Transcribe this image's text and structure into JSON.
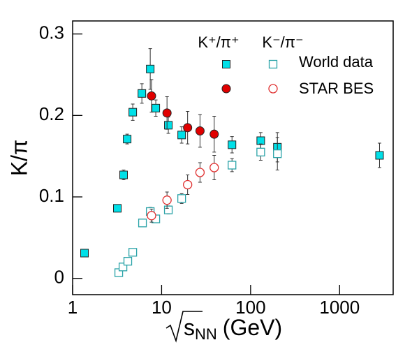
{
  "chart_data": {
    "type": "scatter",
    "ylabel": "K/π",
    "xlabel": {
      "base": "s",
      "sub": "NN",
      "unit": "(GeV)"
    },
    "log_x": true,
    "xlim": [
      1,
      4000
    ],
    "xticks": [
      1,
      10,
      100,
      1000
    ],
    "ylim": [
      -0.02,
      0.316
    ],
    "yticks": [
      0,
      0.1,
      0.2,
      0.3
    ],
    "ratios": [
      "K⁺/π⁺",
      "K⁻/π⁻"
    ],
    "sources": [
      {
        "name": "World data",
        "marker": "square",
        "color": "#00e0e8",
        "open_color": "#2aa3a8",
        "series": [
          {
            "x": [
              1.36,
              3.18,
              3.74,
              4.1,
              4.74,
              6.0,
              7.45,
              8.6,
              11.9,
              16.8,
              61.8,
              130,
              200,
              2811
            ],
            "values": [
              0.031,
              0.086,
              0.127,
              0.171,
              0.204,
              0.227,
              0.257,
              0.209,
              0.188,
              0.176,
              0.164,
              0.169,
              0.161,
              0.151
            ],
            "errors": [
              0.002,
              0.004,
              0.006,
              0.006,
              0.01,
              0.012,
              0.025,
              0.01,
              0.01,
              0.01,
              0.01,
              0.01,
              0.018,
              0.015
            ]
          },
          {
            "x": [
              3.3,
              3.68,
              4.17,
              4.74,
              6.1,
              7.45,
              8.6,
              11.9,
              16.8,
              61.8,
              130,
              200
            ],
            "values": [
              0.007,
              0.014,
              0.021,
              0.032,
              0.068,
              0.082,
              0.073,
              0.084,
              0.098,
              0.139,
              0.155,
              0.153
            ],
            "errors": [
              0.001,
              0.001,
              0.002,
              0.002,
              0.003,
              0.005,
              0.004,
              0.005,
              0.006,
              0.008,
              0.01,
              0.02
            ]
          }
        ]
      },
      {
        "name": "STAR BES",
        "marker": "circle",
        "color": "#e00000",
        "open_color": "#e03030",
        "series": [
          {
            "x": [
              7.7,
              11.5,
              19.6,
              27,
              39
            ],
            "values": [
              0.224,
              0.203,
              0.185,
              0.181,
              0.177
            ],
            "errors": [
              0.02,
              0.02,
              0.02,
              0.02,
              0.022
            ]
          },
          {
            "x": [
              7.7,
              11.5,
              19.6,
              27,
              39
            ],
            "values": [
              0.077,
              0.096,
              0.115,
              0.13,
              0.136
            ],
            "errors": [
              0.008,
              0.01,
              0.012,
              0.012,
              0.015
            ]
          }
        ]
      }
    ]
  }
}
